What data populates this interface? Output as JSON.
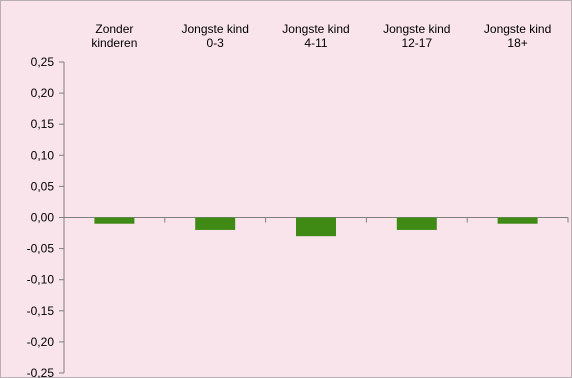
{
  "chart_data": {
    "type": "bar",
    "title": "",
    "xlabel": "",
    "ylabel": "",
    "categories": [
      [
        "Zonder",
        "kinderen"
      ],
      [
        "Jongste kind",
        "0-3"
      ],
      [
        "Jongste kind",
        "4-11"
      ],
      [
        "Jongste kind",
        "12-17"
      ],
      [
        "Jongste kind",
        "18+"
      ]
    ],
    "values": [
      -0.01,
      -0.02,
      -0.03,
      -0.02,
      -0.01
    ],
    "ylim": [
      -0.25,
      0.25
    ],
    "yticks": [
      "0,25",
      "0,20",
      "0,15",
      "0,10",
      "0,05",
      "0,00",
      "-0,05",
      "-0,10",
      "-0,15",
      "-0,20",
      "-0,25"
    ],
    "ytick_values": [
      0.25,
      0.2,
      0.15,
      0.1,
      0.05,
      0.0,
      -0.05,
      -0.1,
      -0.15,
      -0.2,
      -0.25
    ],
    "grid": false,
    "legend": "none",
    "x_labels_position": "top",
    "colors": {
      "bar": "#3f8a14",
      "background": "#f9e4ec",
      "axis": "#808080"
    }
  }
}
